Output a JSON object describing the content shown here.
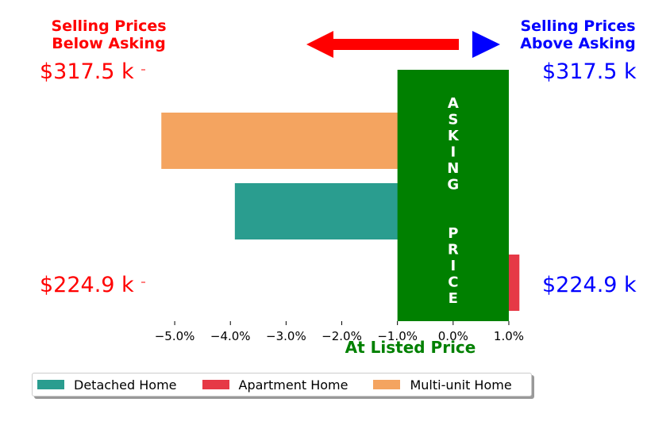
{
  "chart_data": {
    "type": "bar",
    "orientation": "horizontal",
    "x_unit": "%",
    "xlim": [
      -5.5,
      1.2
    ],
    "x_ticks": [
      -5.0,
      -4.0,
      -3.0,
      -2.0,
      -1.0,
      0.0,
      1.0
    ],
    "x_tick_labels": [
      "−5.0%",
      "−4.0%",
      "−3.0%",
      "−2.0%",
      "−1.0%",
      "0.0%",
      "1.0%"
    ],
    "xlabel": "At Listed Price",
    "bars": [
      {
        "category": "Multi-unit Home",
        "value": -5.24,
        "color": "#f4a460"
      },
      {
        "category": "Detached Home",
        "value": -3.92,
        "color": "#2a9d8f"
      },
      {
        "category": "Apartment Home",
        "value": 1.19,
        "color": "#e63946"
      }
    ],
    "asking_band": {
      "range": [
        -1.0,
        1.0
      ],
      "color": "#008000",
      "text": "ASKING  PRICE"
    },
    "left_header": "Selling Prices\nBelow Asking",
    "right_header": "Selling Prices\nAbove Asking",
    "y_labels": {
      "top": "$317.5 k",
      "bottom": "$224.9 k"
    },
    "left_color": "#ff0000",
    "right_color": "#0000ff",
    "xlabel_color": "#008000",
    "legend": [
      {
        "label": "Detached Home",
        "color": "#2a9d8f"
      },
      {
        "label": "Apartment Home",
        "color": "#e63946"
      },
      {
        "label": "Multi-unit Home",
        "color": "#f4a460"
      }
    ]
  }
}
